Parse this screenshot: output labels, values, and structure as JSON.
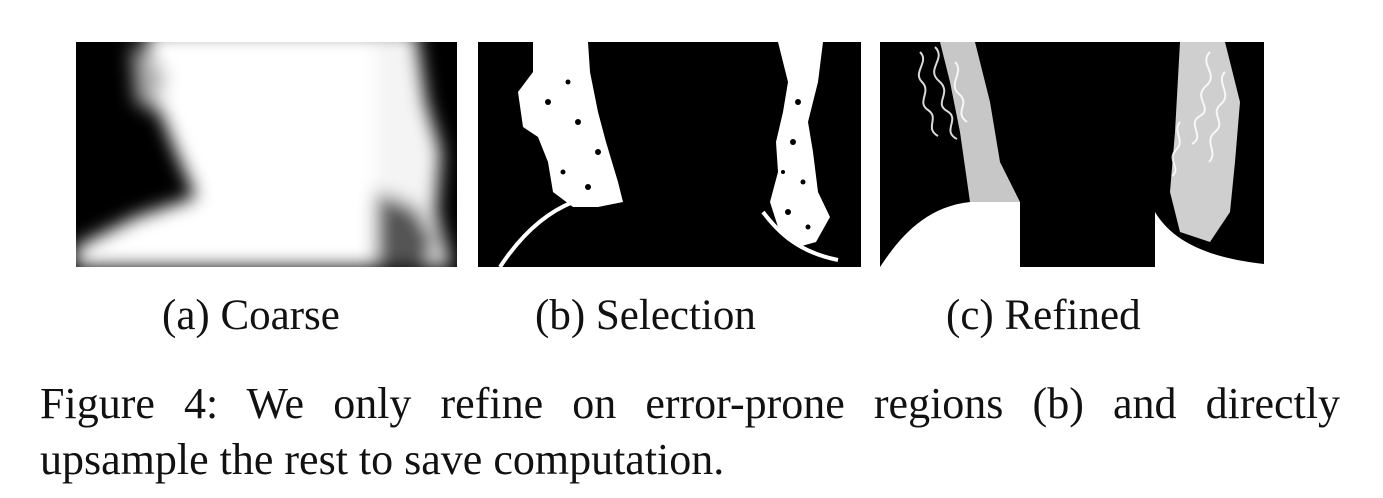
{
  "subfigures": [
    {
      "label": "(a) Coarse"
    },
    {
      "label": "(b) Selection"
    },
    {
      "label": "(c) Refined"
    }
  ],
  "caption": {
    "line1": "Figure 4: We only refine on error-prone regions (b) and directly",
    "line2": "upsample the rest to save computation."
  }
}
